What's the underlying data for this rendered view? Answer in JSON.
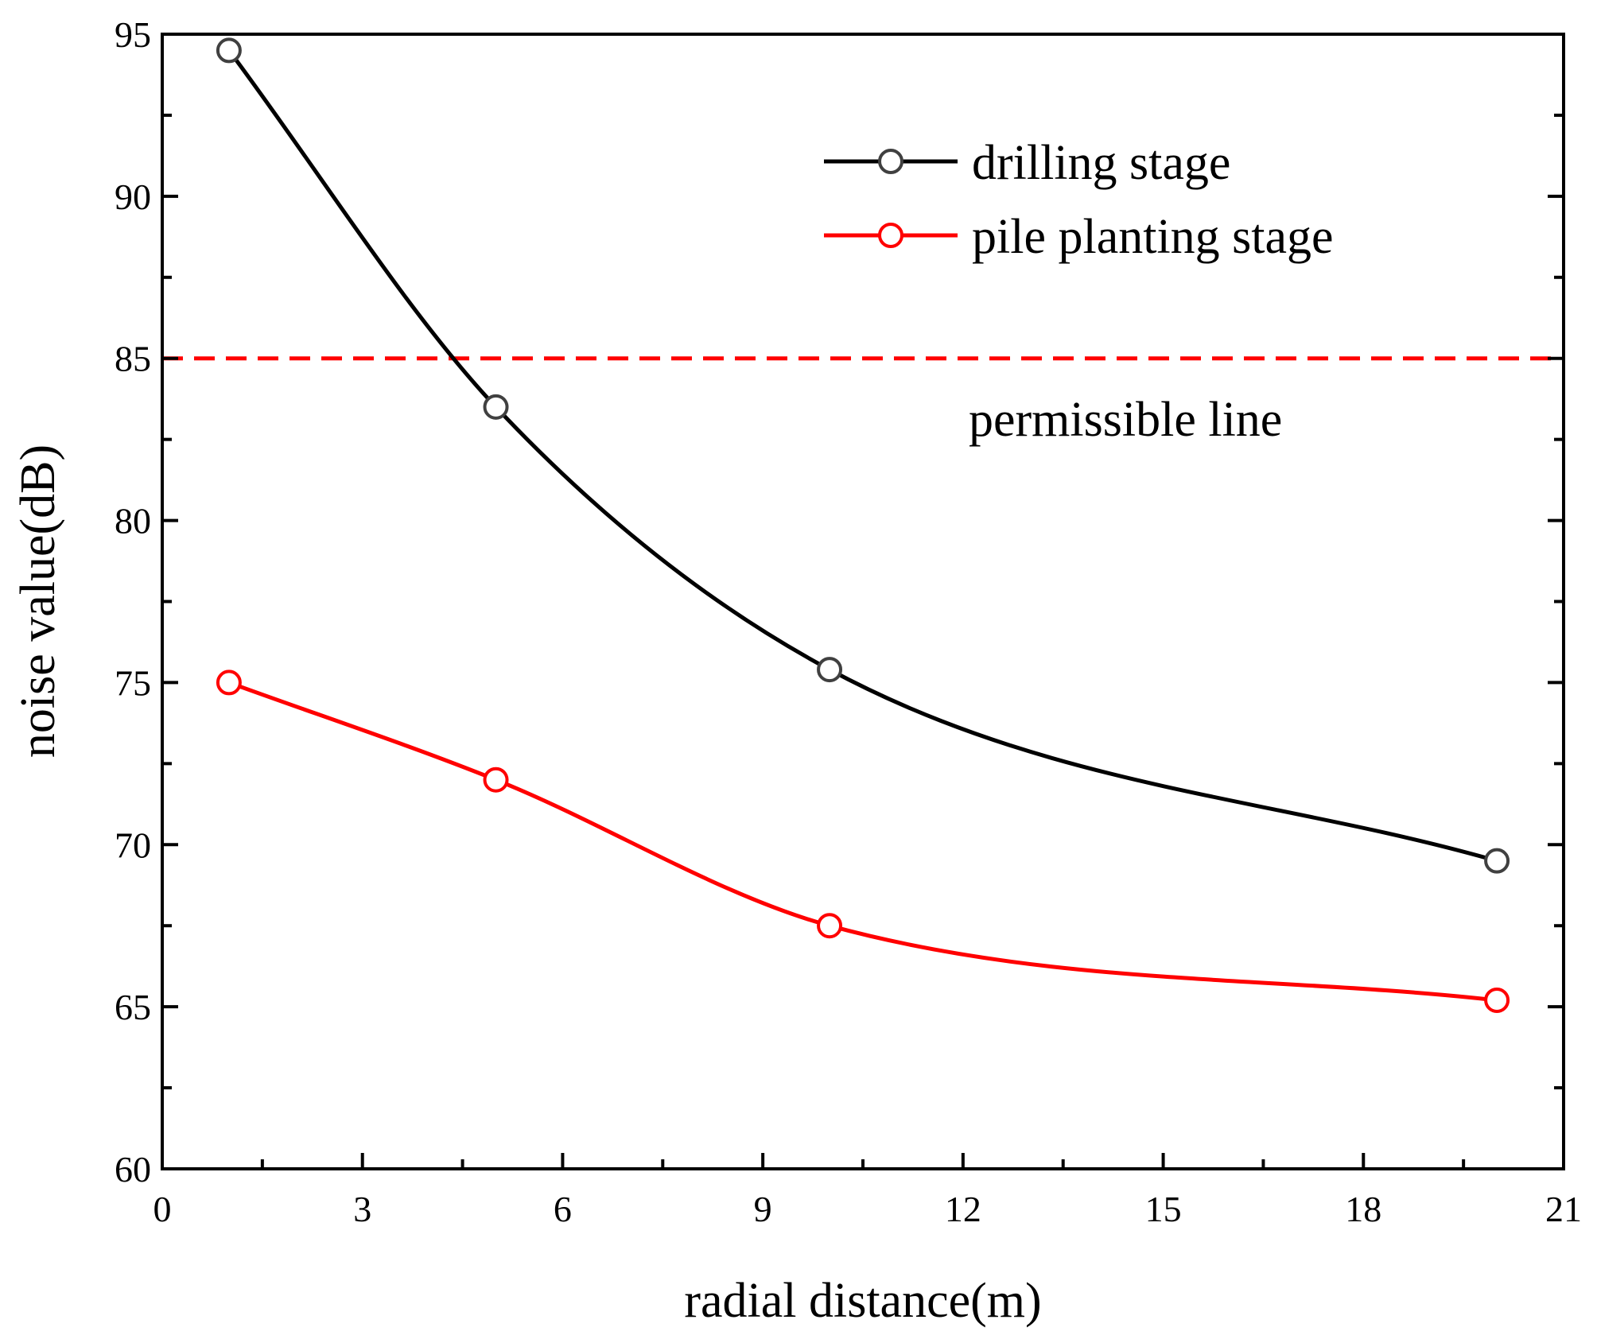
{
  "chart_data": {
    "type": "line",
    "title": "",
    "xlabel": "radial distance(m)",
    "ylabel": "noise value(dB)",
    "xlim": [
      0,
      21
    ],
    "ylim": [
      60,
      95
    ],
    "xticks": [
      0,
      3,
      6,
      9,
      12,
      15,
      18,
      21
    ],
    "yticks": [
      60,
      65,
      70,
      75,
      80,
      85,
      90,
      95
    ],
    "xtick_labels": [
      "0",
      "3",
      "6",
      "9",
      "12",
      "15",
      "18",
      "21"
    ],
    "ytick_labels": [
      "60",
      "65",
      "70",
      "75",
      "80",
      "85",
      "90",
      "95"
    ],
    "grid": false,
    "legend_position": "top-right",
    "series": [
      {
        "name": "drilling stage",
        "color": "#000000",
        "marker_color": "#404040",
        "x": [
          1,
          5,
          10,
          20
        ],
        "y": [
          94.5,
          83.5,
          75.4,
          69.5
        ]
      },
      {
        "name": "pile planting stage",
        "color": "#ff0000",
        "marker_color": "#ff0000",
        "x": [
          1,
          5,
          10,
          20
        ],
        "y": [
          75.0,
          72.0,
          67.5,
          65.2
        ]
      }
    ],
    "reference_line": {
      "label": "permissible line",
      "y": 85,
      "color": "#ff0000",
      "style": "dashed"
    }
  }
}
